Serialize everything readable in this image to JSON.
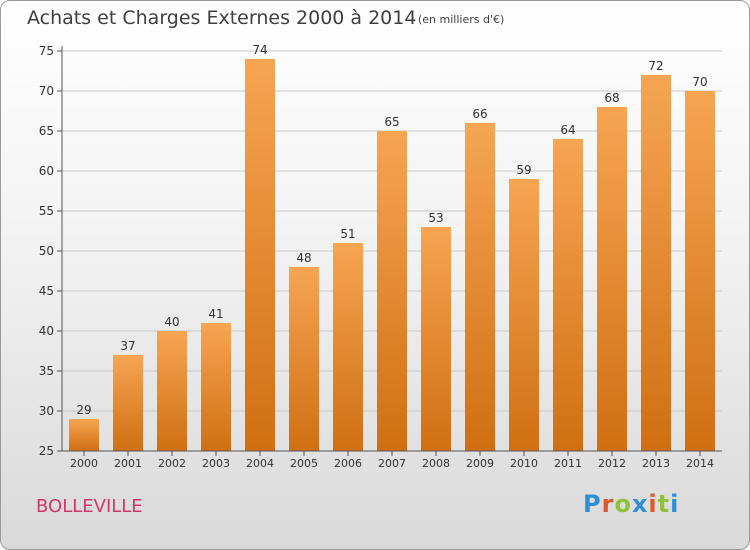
{
  "title": "Achats et Charges Externes 2000 à 2014",
  "subtitle": "(en milliers d'€)",
  "place": "BOLLEVILLE",
  "logo": {
    "text": "Proxiti",
    "letter_colors": [
      "#2e8fd6",
      "#e0592a",
      "#8fc23a",
      "#2e8fd6",
      "#e0592a",
      "#8fc23a",
      "#2e8fd6"
    ]
  },
  "colors": {
    "bar_top": "#f6a553",
    "bar_bottom": "#d06f12",
    "axis": "#555555",
    "grid": "#c9c9c9",
    "text": "#333333"
  },
  "chart_data": {
    "type": "bar",
    "title": "Achats et Charges Externes 2000 à 2014",
    "categories": [
      "2000",
      "2001",
      "2002",
      "2003",
      "2004",
      "2005",
      "2006",
      "2007",
      "2008",
      "2009",
      "2010",
      "2011",
      "2012",
      "2013",
      "2014"
    ],
    "values": [
      29,
      37,
      40,
      41,
      74,
      48,
      51,
      65,
      53,
      66,
      59,
      64,
      68,
      72,
      70
    ],
    "ylim": [
      25,
      75
    ],
    "yticks": [
      25,
      30,
      35,
      40,
      45,
      50,
      55,
      60,
      65,
      70,
      75
    ],
    "grid": true,
    "legend": "none"
  }
}
